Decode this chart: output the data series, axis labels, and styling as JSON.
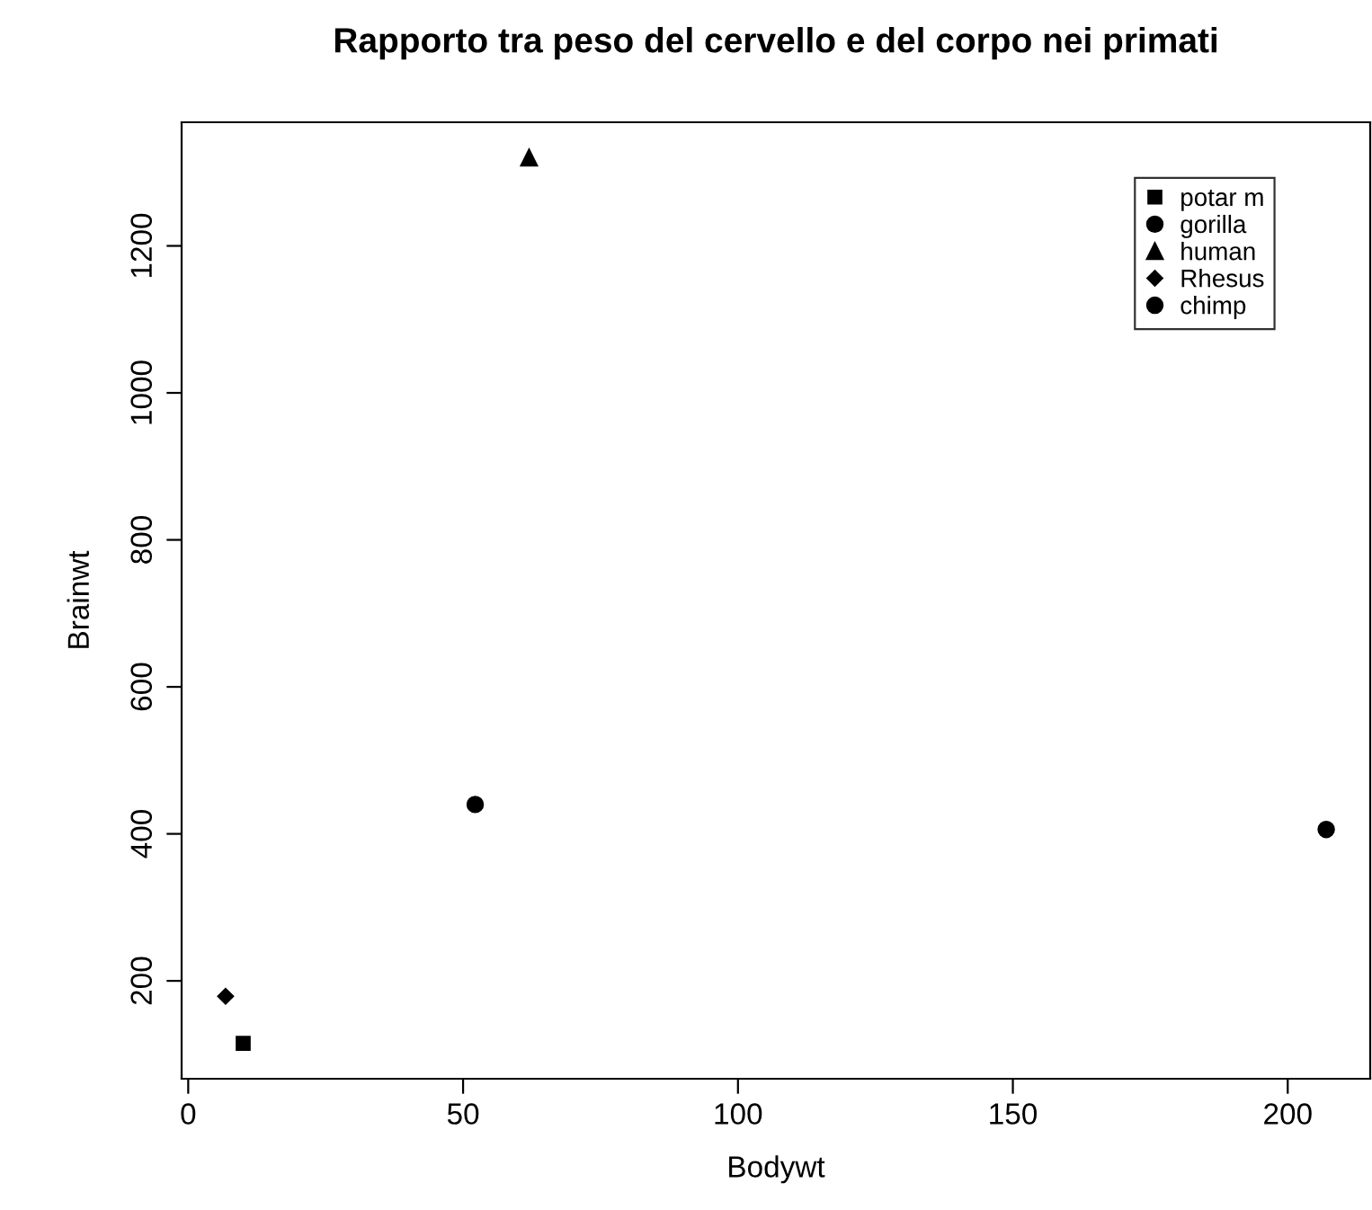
{
  "chart_data": {
    "type": "scatter",
    "title": "Rapporto tra peso del cervello e del corpo nei primati",
    "xlabel": "Bodywt",
    "ylabel": "Brainwt",
    "series": [
      {
        "name": "potar m",
        "color": "#000000",
        "marker": "square",
        "x": [
          10.0
        ],
        "values": [
          115
        ]
      },
      {
        "name": "gorilla",
        "color": "#000000",
        "marker": "circle",
        "x": [
          207.0
        ],
        "values": [
          406
        ]
      },
      {
        "name": "human",
        "color": "#000000",
        "marker": "triangle",
        "x": [
          62.0
        ],
        "values": [
          1320
        ]
      },
      {
        "name": "Rhesus",
        "color": "#000000",
        "marker": "diamond",
        "x": [
          6.8
        ],
        "values": [
          179
        ]
      },
      {
        "name": "chimp",
        "color": "#000000",
        "marker": "circle",
        "x": [
          52.2
        ],
        "values": [
          440
        ]
      }
    ],
    "xlim": [
      -1.2,
      215
    ],
    "ylim": [
      66.8,
      1368.2
    ],
    "xticks": [
      0,
      50,
      100,
      150,
      200
    ],
    "yticks": [
      200,
      400,
      600,
      800,
      1000,
      1200
    ],
    "grid": false,
    "legend": "top right"
  }
}
